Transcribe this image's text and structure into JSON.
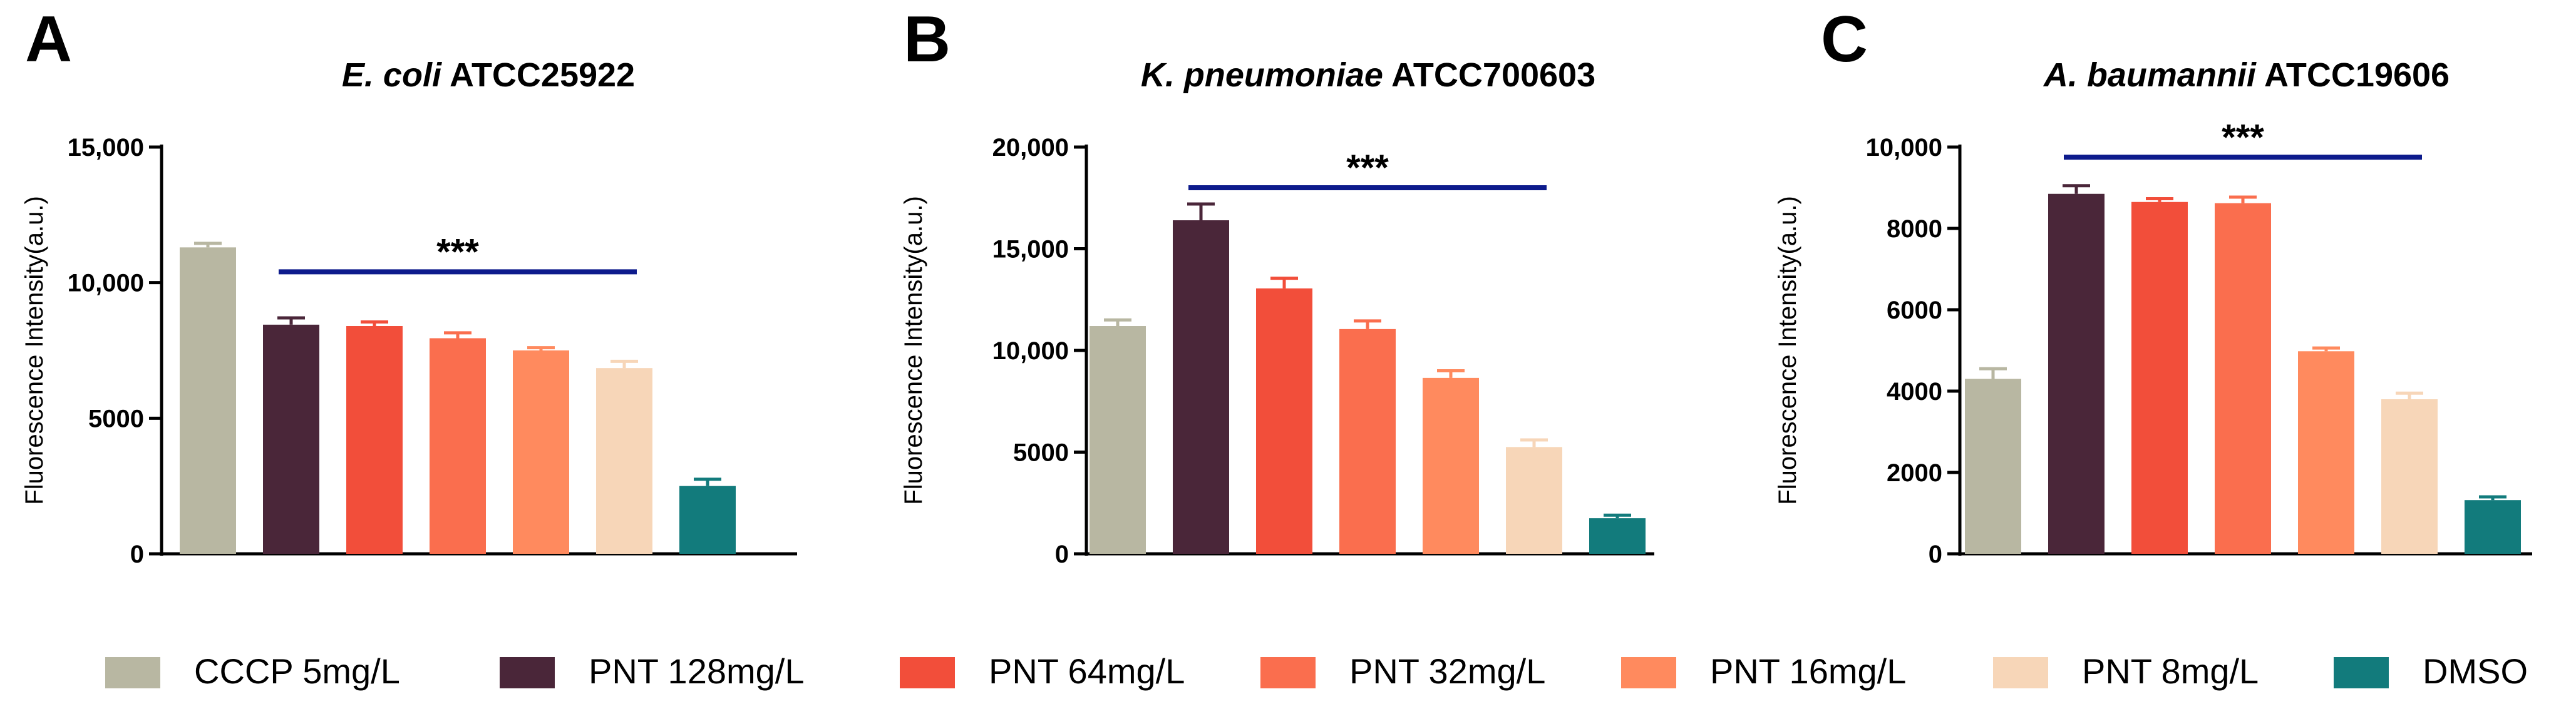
{
  "figure": {
    "legend": [
      {
        "label": "CCCP 5mg/L",
        "color": "#b8b7a2"
      },
      {
        "label": "PNT 128mg/L",
        "color": "#4a2639"
      },
      {
        "label": "PNT 64mg/L",
        "color": "#f24e3a"
      },
      {
        "label": "PNT 32mg/L",
        "color": "#fa6e4e"
      },
      {
        "label": "PNT 16mg/L",
        "color": "#ff8a5e"
      },
      {
        "label": "PNT 8mg/L",
        "color": "#f7d6b8"
      },
      {
        "label": "DMSO",
        "color": "#127b7c"
      }
    ],
    "significance_color": "#0d1b8c"
  },
  "chart_data": [
    {
      "panel": "A",
      "type": "bar",
      "title_species": "E. coli",
      "title_strain": "ATCC25922",
      "ylabel": "Fluorescence Intensity(a.u.)",
      "ylim": [
        0,
        15000
      ],
      "yticks": [
        0,
        5000,
        10000,
        15000
      ],
      "ytick_labels": [
        "0",
        "5000",
        "10,000",
        "15,000"
      ],
      "categories": [
        "CCCP 5mg/L",
        "PNT 128mg/L",
        "PNT 64mg/L",
        "PNT 32mg/L",
        "PNT 16mg/L",
        "PNT 8mg/L",
        "DMSO"
      ],
      "values": [
        11300,
        8450,
        8400,
        7950,
        7500,
        6850,
        2500
      ],
      "errors": [
        150,
        250,
        150,
        200,
        100,
        250,
        250
      ],
      "significance": {
        "label": "***",
        "from": 1,
        "to": 5,
        "y": 10400
      }
    },
    {
      "panel": "B",
      "type": "bar",
      "title_species": "K. pneumoniae",
      "title_strain": "ATCC700603",
      "ylabel": "Fluorescence Intensity(a.u.)",
      "ylim": [
        0,
        20000
      ],
      "yticks": [
        0,
        5000,
        10000,
        15000,
        20000
      ],
      "ytick_labels": [
        "0",
        "5000",
        "10,000",
        "15,000",
        "20,000"
      ],
      "categories": [
        "CCCP 5mg/L",
        "PNT 128mg/L",
        "PNT 64mg/L",
        "PNT 32mg/L",
        "PNT 16mg/L",
        "PNT 8mg/L",
        "DMSO"
      ],
      "values": [
        11200,
        16400,
        13050,
        11050,
        8650,
        5250,
        1750
      ],
      "errors": [
        300,
        800,
        500,
        400,
        350,
        350,
        150
      ],
      "significance": {
        "label": "***",
        "from": 1,
        "to": 5,
        "y": 18000
      }
    },
    {
      "panel": "C",
      "type": "bar",
      "title_species": "A. baumannii",
      "title_strain": "ATCC19606",
      "ylabel": "Fluorescence Intensity(a.u.)",
      "ylim": [
        0,
        10000
      ],
      "yticks": [
        0,
        2000,
        4000,
        6000,
        8000,
        10000
      ],
      "ytick_labels": [
        "0",
        "2000",
        "4000",
        "6000",
        "8000",
        "10,000"
      ],
      "categories": [
        "CCCP 5mg/L",
        "PNT 128mg/L",
        "PNT 64mg/L",
        "PNT 32mg/L",
        "PNT 16mg/L",
        "PNT 8mg/L",
        "DMSO"
      ],
      "values": [
        4300,
        8850,
        8650,
        8620,
        4980,
        3800,
        1320
      ],
      "errors": [
        250,
        200,
        80,
        150,
        80,
        150,
        80
      ],
      "significance": {
        "label": "***",
        "from": 1,
        "to": 5,
        "y": 9750
      }
    }
  ]
}
